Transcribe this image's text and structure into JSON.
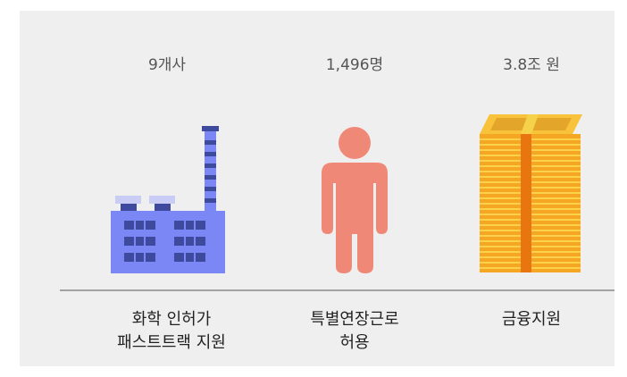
{
  "items": [
    {
      "value": "9개사",
      "label": [
        "화학 인허가",
        "패스트트랙 지원"
      ]
    },
    {
      "value": "1,496명",
      "label": [
        "특별연장근로",
        "허용"
      ]
    },
    {
      "value": "3.8조 원",
      "label": [
        "금융지원"
      ]
    }
  ]
}
